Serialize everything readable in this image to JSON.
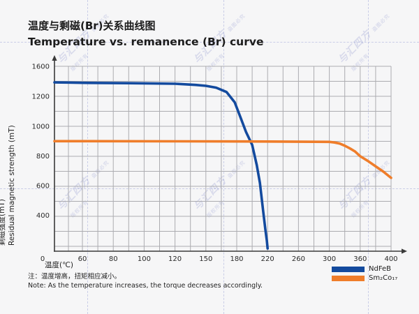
{
  "page": {
    "background": "#f6f6f7"
  },
  "header": {
    "title_zh": "温度与剩磁(Br)关系曲线图",
    "title_en": "Temperature vs. remanence (Br) curve"
  },
  "chart_data": {
    "type": "line",
    "xlabel": "温度(℃)",
    "ylabel_zh": "剩磁强度(mT)",
    "ylabel_en": "Residual magnetic strength (mT)",
    "x_tick_labels": [
      0,
      60,
      80,
      100,
      120,
      150,
      180,
      220,
      260,
      300,
      360,
      400
    ],
    "y_tick_labels": [
      1600,
      1200,
      1000,
      800,
      600,
      400,
      0
    ],
    "ylim": [
      0,
      1600
    ],
    "grid": true,
    "legend_position": "bottom-right",
    "axis_color": "#3a3a3a",
    "grid_color": "#acacb0",
    "series": [
      {
        "name": "NdFeB",
        "color": "#134a9e",
        "points": [
          [
            0,
            1385
          ],
          [
            30,
            1383
          ],
          [
            60,
            1380
          ],
          [
            90,
            1375
          ],
          [
            120,
            1367
          ],
          [
            140,
            1352
          ],
          [
            150,
            1340
          ],
          [
            160,
            1315
          ],
          [
            170,
            1258
          ],
          [
            178,
            1160
          ],
          [
            185,
            1058
          ],
          [
            192,
            962
          ],
          [
            200,
            875
          ],
          [
            206,
            738
          ],
          [
            210,
            618
          ],
          [
            214,
            438
          ],
          [
            217,
            248
          ],
          [
            219,
            118
          ],
          [
            220,
            30
          ]
        ]
      },
      {
        "name": "Sm₂Co₁₇",
        "color": "#ef7d2a",
        "points": [
          [
            0,
            900
          ],
          [
            60,
            900
          ],
          [
            120,
            899
          ],
          [
            180,
            898
          ],
          [
            240,
            897
          ],
          [
            300,
            895
          ],
          [
            310,
            891
          ],
          [
            320,
            884
          ],
          [
            330,
            869
          ],
          [
            340,
            851
          ],
          [
            350,
            830
          ],
          [
            360,
            798
          ],
          [
            370,
            766
          ],
          [
            380,
            730
          ],
          [
            390,
            694
          ],
          [
            400,
            652
          ]
        ]
      }
    ]
  },
  "note": {
    "zh": "注：温度增高，扭矩相应减小。",
    "en": "Note: As the temperature increases, the torque decreases accordingly."
  },
  "watermark": {
    "brand": "与汇四方",
    "caption_left": "版权所有",
    "caption_right": "盗图必究"
  }
}
